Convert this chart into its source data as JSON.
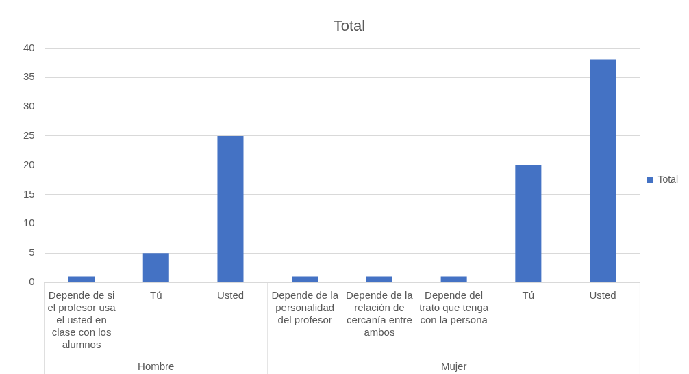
{
  "chart_data": {
    "type": "bar",
    "title": "Total",
    "categories": [
      "Depende de si el profesor usa el usted en clase con los alumnos",
      "Tú",
      "Usted",
      "Depende de la personalidad del profesor",
      "Depende de la relación de cercanía entre ambos",
      "Depende del trato que tenga con la persona",
      "Tú",
      "Usted"
    ],
    "series": [
      {
        "name": "Total",
        "color": "#4472c4",
        "values": [
          1,
          5,
          25,
          1,
          1,
          1,
          20,
          38
        ]
      }
    ],
    "ylim": [
      0,
      40
    ],
    "yticks": [
      0,
      5,
      10,
      15,
      20,
      25,
      30,
      35,
      40
    ],
    "grid": "y",
    "legend": "right",
    "annotations": [
      "Hombre",
      "Mujer"
    ]
  }
}
